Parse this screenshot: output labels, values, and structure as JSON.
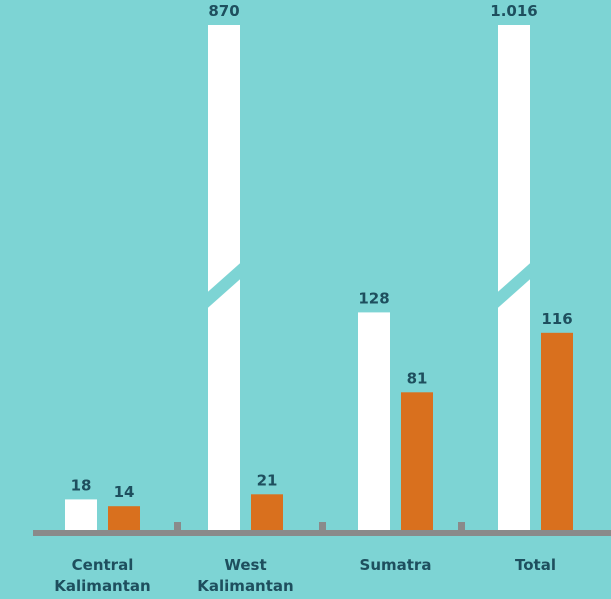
{
  "chart_data": {
    "type": "bar",
    "categories": [
      [
        "Central",
        "Kalimantan"
      ],
      [
        "West",
        "Kalimantan"
      ],
      [
        "Sumatra"
      ],
      [
        "Total"
      ]
    ],
    "series": [
      {
        "values": [
          18,
          870,
          128,
          1016
        ],
        "labels": [
          "18",
          "870",
          "128",
          "1.016"
        ],
        "color": "#ffffff",
        "broken": [
          false,
          true,
          false,
          true
        ]
      },
      {
        "values": [
          14,
          21,
          81,
          116
        ],
        "labels": [
          "14",
          "21",
          "81",
          "116"
        ],
        "color": "#d9701e",
        "broken": [
          false,
          false,
          false,
          false
        ]
      }
    ],
    "title": "",
    "xlabel": "",
    "ylabel": "",
    "axis_break": true,
    "grid": false,
    "legend": "none"
  },
  "colors": {
    "background": "#7dd4d4",
    "baseline": "#8a8a8a",
    "text": "#1e4f5e"
  }
}
